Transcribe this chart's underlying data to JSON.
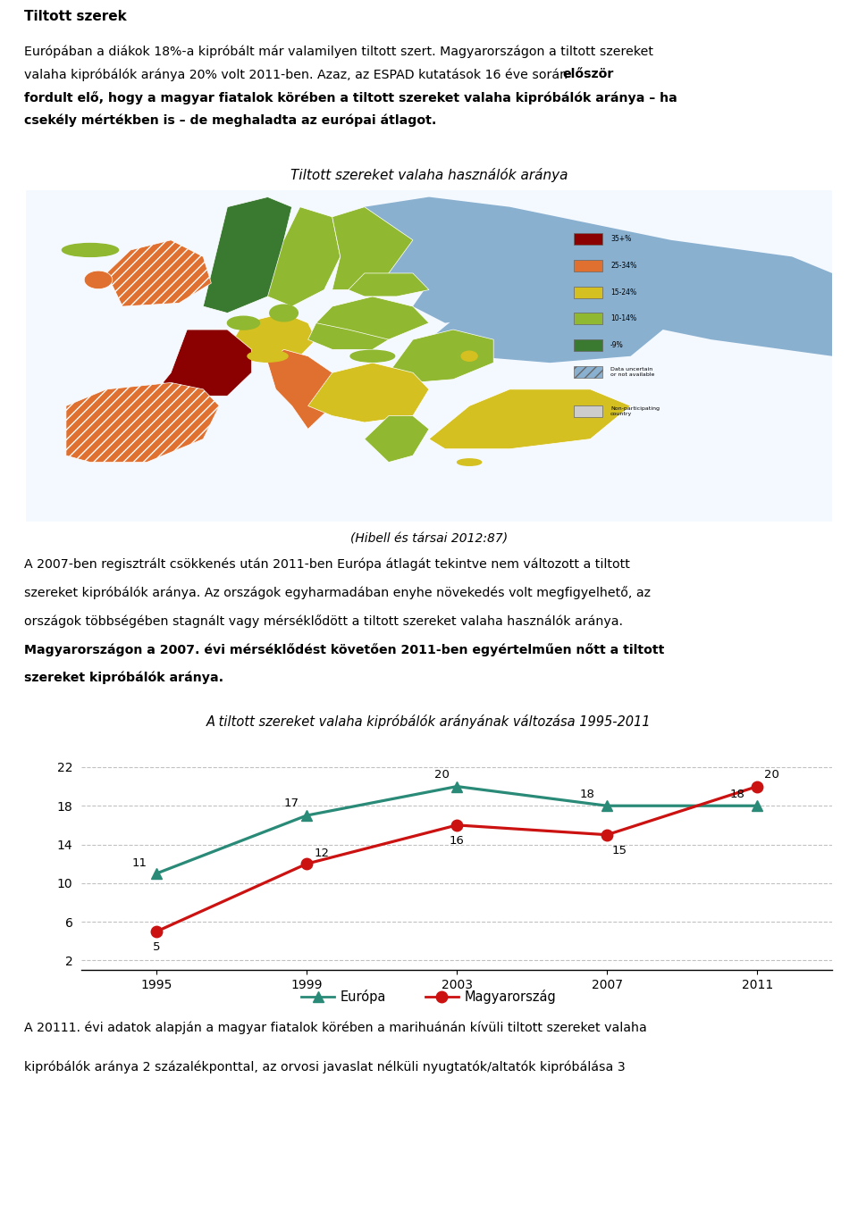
{
  "title_text": "Tiltott szerek",
  "para1_normal": "Európában a diákok 18%-a kipróbált már valamilyen tiltott szert. Magyarországon a tiltott szereket valaha kipróbálók aránya 20% volt 2011-ben. Azaz, az ESPAD kutatások 16 éve során ",
  "para1_bold": "először fordult elő, hogy a magyar fiatalok körében a tiltott szereket valaha kipróbálók aránya – ha csekély mértékben is – de meghaladta az európai átlagot.",
  "map_title": "Tiltott szereket valaha használók aránya",
  "map_caption": "(Hibell és társai 2012:87)",
  "para2_normal": "A 2007-ben regisztrált csökkenés után 2011-ben Európa átlagát tekintve nem változott a tiltott szereket kipróbálók aránya. Az országok egyharmadában enyhe növekedés volt megfigyelhető, az országok többségében stagnált vagy mérséklődött a tiltott szereket valaha használók aránya. ",
  "para2_bold": "Magyarországon a 2007. évi mérséklődést követően 2011-ben egyértelműen nőtt a tiltott szereket kipróbálók aránya.",
  "chart_title": "A tiltott szereket valaha kipróbálók arányának változása 1995-2011",
  "europa_data": {
    "years": [
      1995,
      1999,
      2003,
      2007,
      2011
    ],
    "values": [
      11,
      17,
      20,
      18,
      18
    ]
  },
  "magyarorszag_data": {
    "years": [
      1995,
      1999,
      2003,
      2007,
      2011
    ],
    "values": [
      5,
      12,
      16,
      15,
      20
    ]
  },
  "europa_color": "#2a8a78",
  "magyarorszag_color": "#cc1111",
  "europa_label": "Európa",
  "magyarorszag_label": "Magyarország",
  "yticks": [
    2,
    6,
    10,
    14,
    18,
    22
  ],
  "ylim": [
    1,
    24.5
  ],
  "xlim": [
    1993,
    2013
  ],
  "xtick_labels": [
    "1995",
    "1999",
    "2003",
    "2007",
    "2011"
  ],
  "xtick_positions": [
    1995,
    1999,
    2003,
    2007,
    2011
  ],
  "bottom_text": "A 20111. évi adatok alapján a magyar fiatalok körében a marihuánán kívüli tiltott szereket valaha kipróbálók aránya 2 százalékponttal, az orvosi javaslat nélküli nyugtatók/altatók kipróbálása 3",
  "background_color": "#ffffff",
  "grid_color": "#bbbbbb",
  "text_color": "#000000",
  "map_colors": {
    "darkred": "#8b0000",
    "orange": "#e07030",
    "yellow": "#d4c020",
    "lightgreen": "#90b830",
    "green": "#3a7a30",
    "blue_stripe": "#8ab0d0",
    "gray": "#c0c0c0",
    "white": "#ffffff"
  },
  "legend_colors": [
    "#8b0000",
    "#e07030",
    "#d4c020",
    "#90b830",
    "#3a7a30"
  ],
  "legend_labels": [
    "35+%",
    "25-34%",
    "15-24%",
    "10-14%",
    "-9%"
  ]
}
